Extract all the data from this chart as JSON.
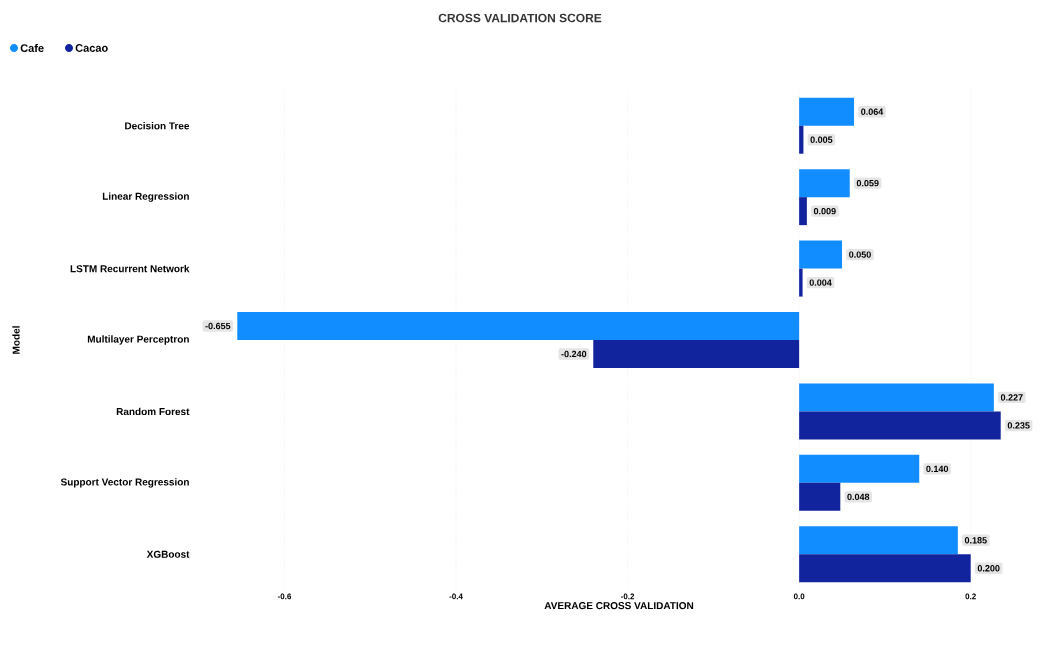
{
  "chart_data": {
    "type": "bar",
    "orientation": "horizontal",
    "title": "CROSS VALIDATION SCORE",
    "xlabel": "AVERAGE CROSS VALIDATION",
    "ylabel": "Model",
    "categories": [
      "Decision Tree",
      "Linear Regression",
      "LSTM Recurrent Network",
      "Multilayer Perceptron",
      "Random Forest",
      "Support Vector Regression",
      "XGBoost"
    ],
    "series": [
      {
        "name": "Cafe",
        "color": "#118dff",
        "values": [
          0.064,
          0.059,
          0.05,
          -0.655,
          0.227,
          0.14,
          0.185
        ],
        "value_labels": [
          "0.064",
          "0.059",
          "0.050",
          "-0.655",
          "0.227",
          "0.140",
          "0.185"
        ]
      },
      {
        "name": "Cacao",
        "color": "#12239e",
        "values": [
          0.005,
          0.009,
          0.004,
          -0.24,
          0.235,
          0.048,
          0.2
        ],
        "value_labels": [
          "0.005",
          "0.009",
          "0.004",
          "-0.240",
          "0.235",
          "0.048",
          "0.200"
        ]
      }
    ],
    "xlim": [
      -0.66,
      0.24
    ],
    "xticks": [
      -0.6,
      -0.4,
      -0.2,
      {
        "value": 0,
        "label": "0.0"
      },
      0.2
    ],
    "grid": "x",
    "legend": "top left"
  }
}
